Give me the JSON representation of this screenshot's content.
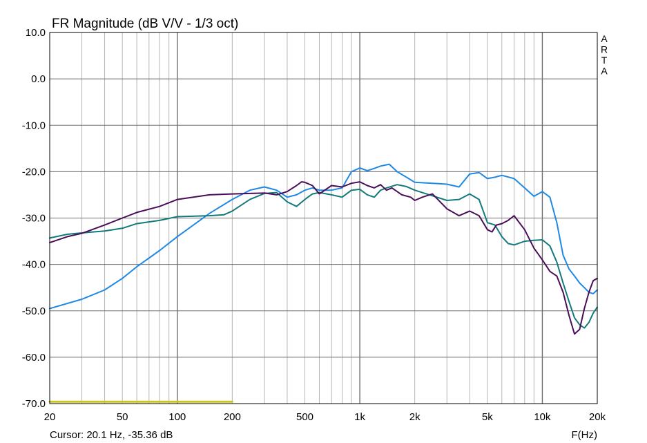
{
  "chart_data": {
    "type": "line",
    "title": "FR Magnitude (dB V/V - 1/3 oct)",
    "xlabel": "F(Hz)",
    "ylabel": "",
    "x_scale": "log",
    "xlim": [
      20,
      20000
    ],
    "ylim": [
      -70,
      10
    ],
    "grid": true,
    "y_ticks": [
      {
        "value": 10,
        "label": "10.0"
      },
      {
        "value": 0,
        "label": "0.0"
      },
      {
        "value": -10,
        "label": "-10.0"
      },
      {
        "value": -20,
        "label": "-20.0"
      },
      {
        "value": -30,
        "label": "-30.0"
      },
      {
        "value": -40,
        "label": "-40.0"
      },
      {
        "value": -50,
        "label": "-50.0"
      },
      {
        "value": -60,
        "label": "-60.0"
      },
      {
        "value": -70,
        "label": "-70.0"
      }
    ],
    "x_ticks": [
      {
        "value": 20,
        "label": "20"
      },
      {
        "value": 50,
        "label": "50"
      },
      {
        "value": 100,
        "label": "100"
      },
      {
        "value": 200,
        "label": "200"
      },
      {
        "value": 500,
        "label": "500"
      },
      {
        "value": 1000,
        "label": "1k"
      },
      {
        "value": 2000,
        "label": "2k"
      },
      {
        "value": 5000,
        "label": "5k"
      },
      {
        "value": 10000,
        "label": "10k"
      },
      {
        "value": 20000,
        "label": "20k"
      }
    ],
    "cursor_text": "Cursor: 20.1 Hz, -35.36 dB",
    "brand_letters": [
      "A",
      "R",
      "T",
      "A"
    ],
    "series": [
      {
        "color": "#1e88e5",
        "points": [
          [
            20,
            -49.5
          ],
          [
            30,
            -47.5
          ],
          [
            40,
            -45.5
          ],
          [
            50,
            -43
          ],
          [
            60,
            -40.5
          ],
          [
            80,
            -37
          ],
          [
            100,
            -34
          ],
          [
            150,
            -29
          ],
          [
            200,
            -26
          ],
          [
            250,
            -24
          ],
          [
            300,
            -23.3
          ],
          [
            350,
            -24
          ],
          [
            400,
            -25.5
          ],
          [
            450,
            -25
          ],
          [
            500,
            -24
          ],
          [
            550,
            -23.5
          ],
          [
            600,
            -24
          ],
          [
            700,
            -24
          ],
          [
            800,
            -23.5
          ],
          [
            900,
            -20
          ],
          [
            1000,
            -19.2
          ],
          [
            1100,
            -19.8
          ],
          [
            1200,
            -19.3
          ],
          [
            1300,
            -18.8
          ],
          [
            1450,
            -18.4
          ],
          [
            1600,
            -20
          ],
          [
            1800,
            -21.2
          ],
          [
            2000,
            -22.3
          ],
          [
            2500,
            -22.5
          ],
          [
            3000,
            -22.7
          ],
          [
            3500,
            -23.3
          ],
          [
            4000,
            -20.5
          ],
          [
            4500,
            -20.2
          ],
          [
            5000,
            -21.5
          ],
          [
            5500,
            -21.2
          ],
          [
            6000,
            -20.8
          ],
          [
            7000,
            -21.5
          ],
          [
            8000,
            -23.5
          ],
          [
            9000,
            -25.3
          ],
          [
            10000,
            -24.3
          ],
          [
            11000,
            -25.5
          ],
          [
            12000,
            -31
          ],
          [
            13000,
            -38
          ],
          [
            14000,
            -41
          ],
          [
            15000,
            -42.5
          ],
          [
            16000,
            -44
          ],
          [
            17000,
            -45
          ],
          [
            18000,
            -46
          ],
          [
            19000,
            -46.3
          ],
          [
            20000,
            -45.5
          ]
        ]
      },
      {
        "color": "#127a7a",
        "points": [
          [
            20,
            -34.3
          ],
          [
            25,
            -33.5
          ],
          [
            30,
            -33.2
          ],
          [
            40,
            -32.8
          ],
          [
            50,
            -32.2
          ],
          [
            60,
            -31.2
          ],
          [
            80,
            -30.5
          ],
          [
            100,
            -29.7
          ],
          [
            150,
            -29.5
          ],
          [
            180,
            -29.3
          ],
          [
            200,
            -28.5
          ],
          [
            250,
            -26
          ],
          [
            300,
            -24.7
          ],
          [
            350,
            -24.5
          ],
          [
            400,
            -26.5
          ],
          [
            450,
            -27.5
          ],
          [
            500,
            -26
          ],
          [
            550,
            -24.8
          ],
          [
            600,
            -24.5
          ],
          [
            700,
            -25
          ],
          [
            800,
            -25.5
          ],
          [
            900,
            -24
          ],
          [
            1000,
            -23.8
          ],
          [
            1100,
            -25
          ],
          [
            1200,
            -25.5
          ],
          [
            1300,
            -24
          ],
          [
            1400,
            -23.5
          ],
          [
            1600,
            -22.8
          ],
          [
            1800,
            -23.2
          ],
          [
            2000,
            -24
          ],
          [
            2500,
            -25.2
          ],
          [
            3000,
            -26.2
          ],
          [
            3500,
            -26
          ],
          [
            4000,
            -24.8
          ],
          [
            4500,
            -26
          ],
          [
            5000,
            -31
          ],
          [
            5500,
            -31.5
          ],
          [
            6000,
            -34
          ],
          [
            6500,
            -35.5
          ],
          [
            7000,
            -35.8
          ],
          [
            8000,
            -35
          ],
          [
            9000,
            -34.8
          ],
          [
            10000,
            -34.7
          ],
          [
            11000,
            -36
          ],
          [
            12000,
            -39.5
          ],
          [
            13000,
            -44
          ],
          [
            14000,
            -48
          ],
          [
            15000,
            -51.5
          ],
          [
            16000,
            -53
          ],
          [
            17000,
            -53.7
          ],
          [
            18000,
            -52.5
          ],
          [
            19000,
            -50.5
          ],
          [
            20000,
            -49.2
          ]
        ]
      },
      {
        "color": "#4a0d5a",
        "points": [
          [
            20,
            -35.3
          ],
          [
            25,
            -34
          ],
          [
            30,
            -33.3
          ],
          [
            40,
            -31.5
          ],
          [
            50,
            -30
          ],
          [
            60,
            -28.8
          ],
          [
            80,
            -27.5
          ],
          [
            100,
            -26
          ],
          [
            150,
            -25
          ],
          [
            200,
            -24.8
          ],
          [
            250,
            -24.7
          ],
          [
            300,
            -24.6
          ],
          [
            350,
            -25
          ],
          [
            400,
            -24.3
          ],
          [
            450,
            -23
          ],
          [
            480,
            -22.2
          ],
          [
            500,
            -22.3
          ],
          [
            550,
            -23
          ],
          [
            600,
            -24.8
          ],
          [
            700,
            -23
          ],
          [
            800,
            -23.3
          ],
          [
            900,
            -22.5
          ],
          [
            1000,
            -22.2
          ],
          [
            1100,
            -23
          ],
          [
            1200,
            -23.5
          ],
          [
            1300,
            -22.8
          ],
          [
            1400,
            -24
          ],
          [
            1500,
            -23.5
          ],
          [
            1700,
            -25
          ],
          [
            1900,
            -25.5
          ],
          [
            2000,
            -26.2
          ],
          [
            2200,
            -25.5
          ],
          [
            2500,
            -24.8
          ],
          [
            3000,
            -28
          ],
          [
            3500,
            -29.5
          ],
          [
            4000,
            -28.5
          ],
          [
            4500,
            -29.5
          ],
          [
            5000,
            -32.5
          ],
          [
            5300,
            -33
          ],
          [
            5600,
            -31.5
          ],
          [
            6000,
            -31.2
          ],
          [
            6500,
            -30.5
          ],
          [
            7000,
            -29.5
          ],
          [
            8000,
            -32.5
          ],
          [
            9000,
            -36.5
          ],
          [
            10000,
            -39
          ],
          [
            11000,
            -41.5
          ],
          [
            12000,
            -42.5
          ],
          [
            13000,
            -46
          ],
          [
            14000,
            -51
          ],
          [
            15000,
            -55
          ],
          [
            16000,
            -54
          ],
          [
            17000,
            -49.5
          ],
          [
            18000,
            -46
          ],
          [
            19000,
            -43.5
          ],
          [
            20000,
            -43
          ]
        ]
      },
      {
        "color": "#c8c81e",
        "points": [
          [
            20,
            -69.6
          ],
          [
            200,
            -69.6
          ]
        ]
      }
    ]
  }
}
